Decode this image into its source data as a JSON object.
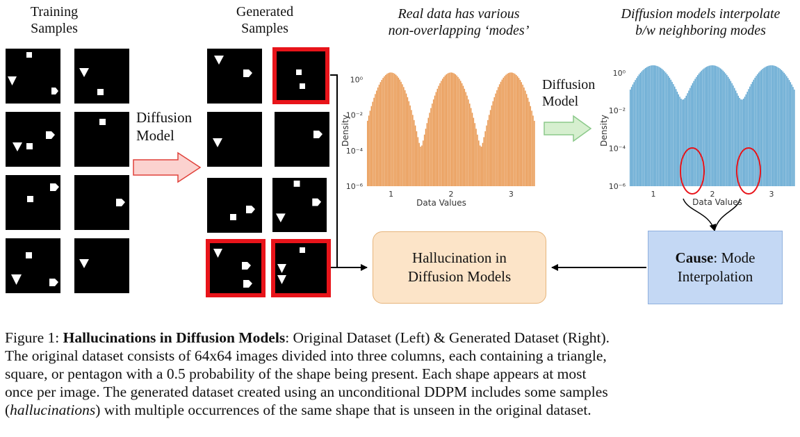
{
  "headers": {
    "training": [
      "Training",
      "Samples"
    ],
    "generated": [
      "Generated",
      "Samples"
    ],
    "real_data": [
      "Real data has various",
      "non-overlapping ‘modes’"
    ],
    "interp": [
      "Diffusion models interpolate",
      "b/w neighboring modes"
    ]
  },
  "labels": {
    "diffusion_left": [
      "Diffusion",
      "Model"
    ],
    "diffusion_right": [
      "Diffusion",
      "Model"
    ]
  },
  "boxes": {
    "hallucination": [
      "Hallucination in",
      "Diffusion Models"
    ],
    "cause_bold": "Cause",
    "cause_rest": ": Mode",
    "cause_line2": "Interpolation"
  },
  "colors": {
    "orange_bars": "#e8944a",
    "blue_bars": "#5aa3cf",
    "red_border": "#e8141a",
    "red_arrow_fill": "#fbd2cf",
    "green_arrow_fill": "#d6efcf",
    "hallucination_box": "#fce4c8",
    "cause_box": "#c4d8f4"
  },
  "chart_data": [
    {
      "type": "bar",
      "ylabel": "Density",
      "xlabel": "Data Values",
      "yscale": "log",
      "ylim": [
        1e-06,
        1.5
      ],
      "xlim": [
        0.6,
        3.4
      ],
      "xticks": [
        "1",
        "2",
        "3"
      ],
      "yticks": [
        "10⁰",
        "10⁻²",
        "10⁻⁴",
        "10⁻⁶"
      ],
      "ytick_values": [
        1,
        0.01,
        0.0001,
        1e-06
      ],
      "modes": [
        1,
        2,
        3
      ],
      "mode_width": 0.11,
      "peak": 2.5,
      "floor": 0
    },
    {
      "type": "bar",
      "ylabel": "Density",
      "xlabel": "Data Values",
      "yscale": "log",
      "ylim": [
        1e-06,
        1.5
      ],
      "xlim": [
        0.6,
        3.4
      ],
      "xticks": [
        "1",
        "2",
        "3"
      ],
      "yticks": [
        "10⁰",
        "10⁻²",
        "10⁻⁴",
        "10⁻⁶"
      ],
      "ytick_values": [
        1,
        0.01,
        0.0001,
        1e-06
      ],
      "modes": [
        1,
        2,
        3
      ],
      "mode_width": 0.16,
      "peak": 2.5,
      "floor": 5e-05
    }
  ],
  "caption": {
    "line1_prefix": "Figure 1: ",
    "line1_bold": "Hallucinations in Diffusion Models",
    "line1_rest": ": Original Dataset (Left) & Generated Dataset (Right).",
    "line2": "The original dataset consists of 64x64 images divided into three columns, each containing a triangle,",
    "line3": "square, or pentagon with a 0.5 probability of the shape being present. Each shape appears at most",
    "line4": "once per image. The generated dataset created using an unconditional DDPM includes some samples",
    "line5_open": "(",
    "line5_ital": "hallucinations",
    "line5_rest": ") with multiple occurrences of the same shape that is unseen in the original dataset."
  }
}
